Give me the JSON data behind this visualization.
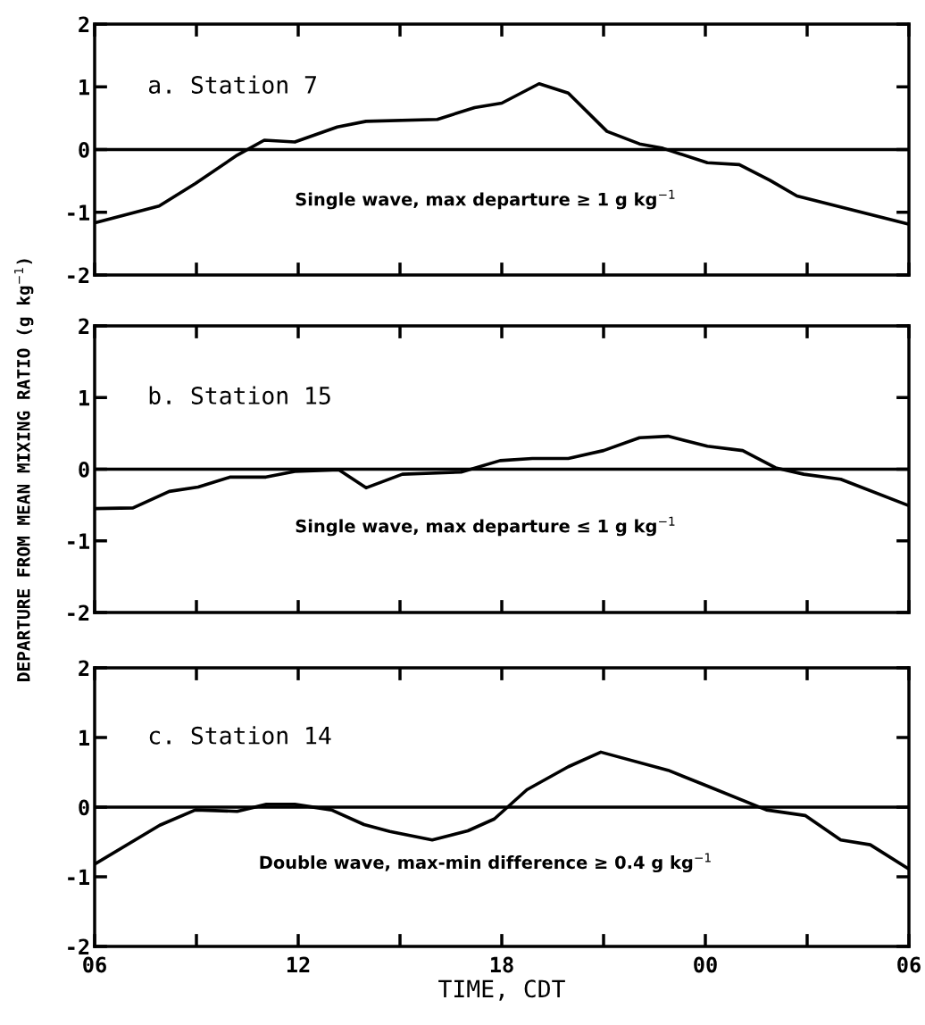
{
  "chart_data": [
    {
      "type": "line",
      "tick_labels": "y",
      "xlim": [
        6,
        30
      ],
      "ylim": [
        -2,
        2
      ],
      "yticks": [
        -2,
        -1,
        0,
        1,
        2
      ],
      "xticks": [
        {
          "value": 6,
          "label": null
        },
        {
          "value": 9,
          "label": null
        },
        {
          "value": 12,
          "label": null
        },
        {
          "value": 15,
          "label": null
        },
        {
          "value": 18,
          "label": null
        },
        {
          "value": 21,
          "label": null
        },
        {
          "value": 24,
          "label": null
        },
        {
          "value": 27,
          "label": null
        },
        {
          "value": 30,
          "label": null
        }
      ],
      "ref_lines": [
        {
          "axis": "y",
          "value": 0,
          "color": "#000000"
        }
      ],
      "grid": false,
      "annotations": [
        "a. Station 7",
        "Single wave, max departure ≥ 1 g kg$^{−1}$"
      ],
      "series": [
        {
          "color": "#000000",
          "x": [
            6.0,
            7.9,
            8.97,
            10.2,
            11.0,
            11.9,
            13.15,
            14.0,
            16.1,
            17.2,
            18.0,
            19.1,
            19.96,
            21.1,
            22.06,
            22.75,
            24.06,
            25.0,
            25.9,
            26.7,
            30
          ],
          "values": [
            -1.17,
            -0.9,
            -0.54,
            -0.09,
            0.15,
            0.12,
            0.36,
            0.45,
            0.48,
            0.67,
            0.74,
            1.05,
            0.9,
            0.29,
            0.09,
            0.02,
            -0.21,
            -0.24,
            -0.49,
            -0.74,
            -1.19
          ]
        }
      ]
    },
    {
      "type": "line",
      "tick_labels": "y",
      "xlim": [
        6,
        30
      ],
      "ylim": [
        -2,
        2
      ],
      "yticks": [
        -2,
        -1,
        0,
        1,
        2
      ],
      "xticks": [
        {
          "value": 6,
          "label": null
        },
        {
          "value": 9,
          "label": null
        },
        {
          "value": 12,
          "label": null
        },
        {
          "value": 15,
          "label": null
        },
        {
          "value": 18,
          "label": null
        },
        {
          "value": 21,
          "label": null
        },
        {
          "value": 24,
          "label": null
        },
        {
          "value": 27,
          "label": null
        },
        {
          "value": 30,
          "label": null
        }
      ],
      "ylabel": "DEPARTURE FROM MEAN MIXING RATIO (g kg$^{−1}$)",
      "ref_lines": [
        {
          "axis": "y",
          "value": 0,
          "color": "#000000"
        }
      ],
      "grid": false,
      "annotations": [
        "b. Station 15",
        "Single wave, max departure ≤ 1 g kg$^{−1}$"
      ],
      "series": [
        {
          "color": "#000000",
          "x": [
            6,
            7.13,
            8.2,
            9.05,
            10.0,
            11.05,
            11.9,
            13.2,
            14.0,
            15.07,
            16.8,
            17.95,
            18.9,
            19.96,
            21.0,
            22.06,
            22.9,
            24.06,
            25.1,
            26.07,
            26.9,
            27.99,
            30
          ],
          "values": [
            -0.55,
            -0.54,
            -0.31,
            -0.25,
            -0.11,
            -0.11,
            -0.03,
            -0.01,
            -0.26,
            -0.07,
            -0.04,
            0.12,
            0.15,
            0.15,
            0.26,
            0.44,
            0.46,
            0.32,
            0.26,
            0.02,
            -0.07,
            -0.14,
            -0.51
          ]
        }
      ]
    },
    {
      "type": "line",
      "xlim": [
        6,
        30
      ],
      "ylim": [
        -2,
        2
      ],
      "yticks": [
        -2,
        -1,
        0,
        1,
        2
      ],
      "xticks": [
        {
          "value": 6,
          "label": "06"
        },
        {
          "value": 9,
          "label": null
        },
        {
          "value": 12,
          "label": "12"
        },
        {
          "value": 15,
          "label": null
        },
        {
          "value": 18,
          "label": "18"
        },
        {
          "value": 21,
          "label": null
        },
        {
          "value": 24,
          "label": "00"
        },
        {
          "value": 27,
          "label": null
        },
        {
          "value": 30,
          "label": "06"
        }
      ],
      "xlabel": "TIME, CDT",
      "ref_lines": [
        {
          "axis": "y",
          "value": 0,
          "color": "#000000"
        }
      ],
      "grid": false,
      "annotations": [
        "c. Station 14",
        "Double wave, max-min difference ≥ 0.4 g kg$^{−1}$"
      ],
      "series": [
        {
          "color": "#000000",
          "x": [
            6,
            7.92,
            8.97,
            10.2,
            11.06,
            11.9,
            12.98,
            13.94,
            14.7,
            15.95,
            17.0,
            17.78,
            18.74,
            19.96,
            20.92,
            22.9,
            23.97,
            25.8,
            26.94,
            27.99,
            28.86,
            30
          ],
          "values": [
            -0.82,
            -0.26,
            -0.04,
            -0.06,
            0.04,
            0.04,
            -0.04,
            -0.25,
            -0.35,
            -0.47,
            -0.34,
            -0.17,
            0.25,
            0.58,
            0.79,
            0.53,
            0.32,
            -0.04,
            -0.12,
            -0.47,
            -0.54,
            -0.89
          ]
        }
      ]
    }
  ]
}
